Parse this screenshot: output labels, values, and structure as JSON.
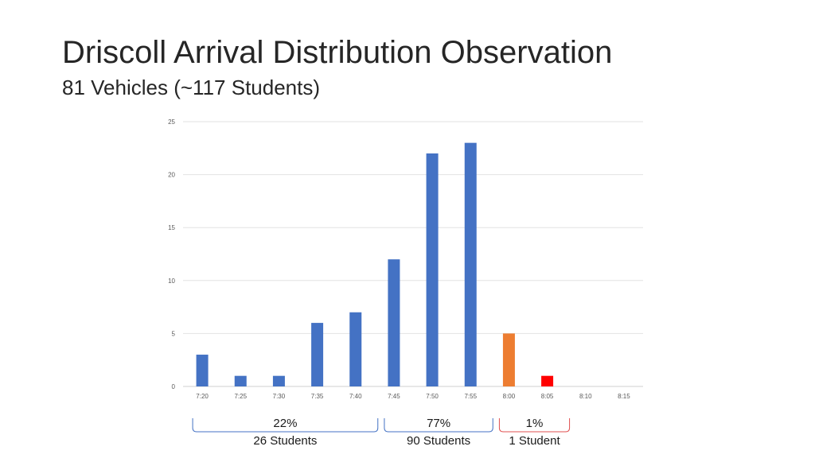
{
  "header": {
    "title": "Driscoll Arrival Distribution Observation",
    "subtitle": "81 Vehicles (~117 Students)"
  },
  "chart_data": {
    "type": "bar",
    "categories": [
      "7:20",
      "7:25",
      "7:30",
      "7:35",
      "7:40",
      "7:45",
      "7:50",
      "7:55",
      "8:00",
      "8:05",
      "8:10",
      "8:15"
    ],
    "values": [
      3,
      1,
      1,
      6,
      7,
      12,
      22,
      23,
      5,
      1,
      0,
      0
    ],
    "bar_colors": [
      "#4472C4",
      "#4472C4",
      "#4472C4",
      "#4472C4",
      "#4472C4",
      "#4472C4",
      "#4472C4",
      "#4472C4",
      "#ED7D31",
      "#FF0000",
      "#4472C4",
      "#4472C4"
    ],
    "ylim": [
      0,
      25
    ],
    "yticks": [
      0,
      5,
      10,
      15,
      20,
      25
    ],
    "grid": true,
    "title": "",
    "xlabel": "",
    "ylabel": "",
    "annotations": [
      {
        "percent": "22%",
        "count": "26 Students",
        "from": "7:20",
        "to": "7:40",
        "color": "#4472C4"
      },
      {
        "percent": "77%",
        "count": "90 Students",
        "from": "7:45",
        "to": "7:55",
        "color": "#4472C4"
      },
      {
        "percent": "1%",
        "count": "1 Student",
        "from": "8:00",
        "to": "8:05",
        "color": "#E05050"
      }
    ]
  }
}
